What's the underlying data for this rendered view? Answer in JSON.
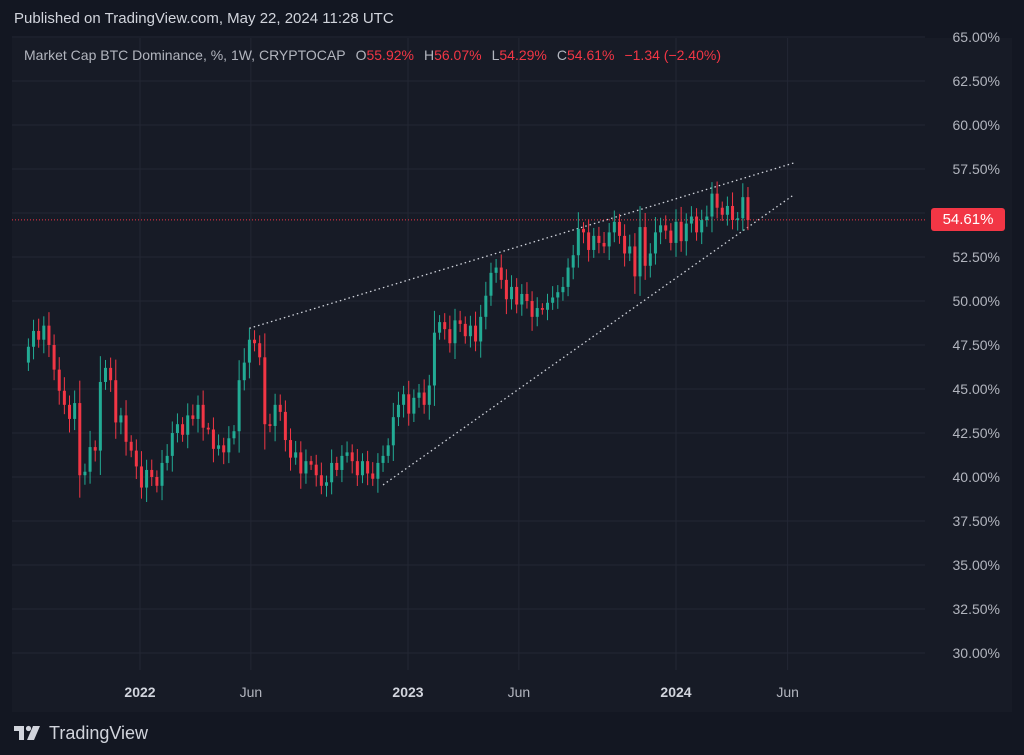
{
  "header": {
    "published_text": "Published on TradingView.com, May 22, 2024 11:28 UTC"
  },
  "legend": {
    "symbol_text": "Market Cap BTC Dominance, %, 1W, CRYPTOCAP",
    "open_label": "O",
    "open_value": "55.92%",
    "high_label": "H",
    "high_value": "56.07%",
    "low_label": "L",
    "low_value": "54.29%",
    "close_label": "C",
    "close_value": "54.61%",
    "change_text": "−1.34 (−2.40%)"
  },
  "price_badge": "54.61%",
  "brand": {
    "logo_text": "TradingView"
  },
  "colors": {
    "up": "#22ab94",
    "down": "#f23645",
    "background": "#171b26",
    "grid": "#232734",
    "axis_text": "#b2b5be"
  },
  "chart_data": {
    "type": "candlestick",
    "ylim": [
      28.75,
      65.0
    ],
    "y_ticks": [
      "30.00%",
      "32.50%",
      "35.00%",
      "37.50%",
      "40.00%",
      "42.50%",
      "45.00%",
      "47.50%",
      "50.00%",
      "52.50%",
      "55.00%",
      "57.50%",
      "60.00%",
      "62.50%",
      "65.00%"
    ],
    "x_ticks": [
      {
        "label": "2022",
        "date": "2022-01-01",
        "bold": true
      },
      {
        "label": "Jun",
        "date": "2022-06-01",
        "bold": false
      },
      {
        "label": "2023",
        "date": "2023-01-01",
        "bold": true
      },
      {
        "label": "Jun",
        "date": "2023-06-01",
        "bold": false
      },
      {
        "label": "2024",
        "date": "2024-01-01",
        "bold": true
      },
      {
        "label": "Jun",
        "date": "2024-06-01",
        "bold": false
      }
    ],
    "last_price": 54.61,
    "candle_start_date": "2021-08-02",
    "candle_interval": "1W",
    "closes": [
      47.4,
      48.3,
      47.8,
      48.6,
      47.5,
      46.1,
      44.9,
      44.1,
      43.3,
      44.2,
      40.1,
      40.3,
      41.7,
      41.5,
      45.4,
      46.2,
      45.5,
      43.1,
      43.5,
      42.0,
      41.5,
      40.6,
      39.4,
      40.4,
      40.0,
      39.5,
      40.8,
      41.2,
      42.5,
      43.0,
      42.4,
      43.5,
      43.3,
      44.1,
      42.8,
      42.7,
      41.6,
      41.8,
      41.4,
      42.2,
      42.6,
      45.5,
      46.5,
      47.8,
      47.6,
      46.8,
      43.0,
      42.9,
      44.1,
      43.7,
      42.1,
      41.1,
      41.4,
      40.2,
      40.9,
      40.7,
      40.1,
      39.5,
      39.7,
      40.8,
      40.4,
      41.2,
      41.4,
      40.9,
      40.1,
      40.9,
      40.2,
      39.9,
      40.8,
      41.2,
      41.8,
      43.4,
      44.1,
      44.7,
      43.6,
      44.5,
      44.8,
      44.1,
      45.2,
      48.2,
      48.8,
      48.4,
      47.6,
      48.9,
      48.7,
      48.0,
      48.6,
      47.7,
      49.1,
      50.3,
      51.6,
      51.9,
      51.2,
      50.1,
      50.8,
      49.8,
      50.4,
      50.0,
      49.1,
      49.6,
      49.5,
      49.9,
      50.2,
      50.5,
      50.8,
      51.9,
      52.6,
      54.1,
      53.9,
      52.9,
      53.7,
      53.3,
      53.1,
      53.9,
      54.5,
      53.7,
      52.7,
      53.1,
      51.4,
      54.2,
      52.0,
      52.7,
      53.9,
      54.3,
      54.0,
      53.3,
      54.5,
      53.4,
      54.4,
      54.8,
      53.9,
      54.6,
      54.8,
      56.1,
      55.3,
      54.9,
      55.4,
      54.6,
      54.7,
      55.9,
      54.6
    ],
    "trend_lines": [
      {
        "from": [
          "2022-05-30",
          48.45
        ],
        "to": [
          "2024-06-10",
          57.85
        ],
        "style": "dotted"
      },
      {
        "from": [
          "2022-11-28",
          39.55
        ],
        "to": [
          "2024-06-10",
          56.05
        ],
        "style": "dotted"
      }
    ]
  }
}
